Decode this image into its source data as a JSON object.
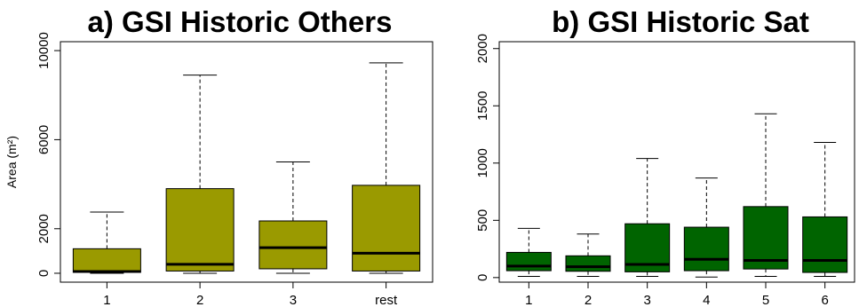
{
  "chart_data": [
    {
      "type": "box",
      "title": "a) GSI Historic Others",
      "ylabel": "Area (m²)",
      "xlabel": "",
      "ylim": [
        -400,
        10400
      ],
      "yticks": [
        0,
        2000,
        6000,
        10000
      ],
      "yticklabels": [
        "0",
        "2000",
        "6000",
        "10000"
      ],
      "box_color": "#9a9a00",
      "categories": [
        "1",
        "2",
        "3",
        "rest"
      ],
      "boxes": [
        {
          "min": 0,
          "q1": 40,
          "median": 80,
          "q3": 1100,
          "max": 2750
        },
        {
          "min": 0,
          "q1": 100,
          "median": 400,
          "q3": 3800,
          "max": 8900
        },
        {
          "min": 0,
          "q1": 200,
          "median": 1150,
          "q3": 2350,
          "max": 5000
        },
        {
          "min": 0,
          "q1": 100,
          "median": 900,
          "q3": 3950,
          "max": 9450
        }
      ]
    },
    {
      "type": "box",
      "title": "b) GSI Historic Sat",
      "ylabel": "",
      "xlabel": "",
      "ylim": [
        -40,
        2060
      ],
      "yticks": [
        0,
        500,
        1000,
        1500,
        2000
      ],
      "yticklabels": [
        "0",
        "500",
        "1000",
        "1500",
        "2000"
      ],
      "box_color": "#006400",
      "categories": [
        "1",
        "2",
        "3",
        "4",
        "5",
        "6"
      ],
      "boxes": [
        {
          "min": 10,
          "q1": 60,
          "median": 100,
          "q3": 220,
          "max": 430
        },
        {
          "min": 10,
          "q1": 55,
          "median": 95,
          "q3": 190,
          "max": 380
        },
        {
          "min": 10,
          "q1": 50,
          "median": 115,
          "q3": 470,
          "max": 1040
        },
        {
          "min": 5,
          "q1": 60,
          "median": 160,
          "q3": 440,
          "max": 870
        },
        {
          "min": 10,
          "q1": 75,
          "median": 150,
          "q3": 620,
          "max": 1430
        },
        {
          "min": 10,
          "q1": 45,
          "median": 150,
          "q3": 530,
          "max": 1180
        }
      ]
    }
  ]
}
